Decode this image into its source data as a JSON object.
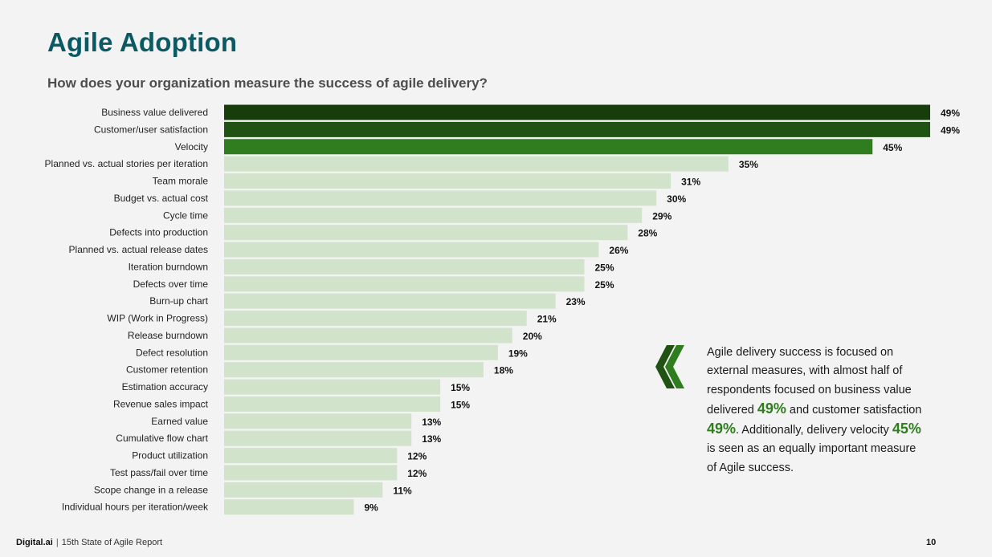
{
  "page": {
    "title": "Agile Adoption",
    "subtitle": "How does your organization measure the success of agile delivery?"
  },
  "chart_data": {
    "type": "bar",
    "orientation": "horizontal",
    "categories": [
      "Business value delivered",
      "Customer/user satisfaction",
      "Velocity",
      "Planned vs. actual stories per iteration",
      "Team morale",
      "Budget vs. actual cost",
      "Cycle time",
      "Defects into production",
      "Planned vs. actual release dates",
      "Iteration burndown",
      "Defects over time",
      "Burn-up chart",
      "WIP (Work in Progress)",
      "Release burndown",
      "Defect resolution",
      "Customer retention",
      "Estimation accuracy",
      "Revenue sales impact",
      "Earned value",
      "Cumulative flow chart",
      "Product utilization",
      "Test pass/fail over time",
      "Scope change in a release",
      "Individual hours per iteration/week"
    ],
    "values": [
      49,
      49,
      45,
      35,
      31,
      30,
      29,
      28,
      26,
      25,
      25,
      23,
      21,
      20,
      19,
      18,
      15,
      15,
      13,
      13,
      12,
      12,
      11,
      9
    ],
    "value_labels": [
      "49%",
      "49%",
      "45%",
      "35%",
      "31%",
      "30%",
      "29%",
      "28%",
      "26%",
      "25%",
      "25%",
      "23%",
      "21%",
      "20%",
      "19%",
      "18%",
      "15%",
      "15%",
      "13%",
      "13%",
      "12%",
      "12%",
      "11%",
      "9%"
    ],
    "xlim": [
      0,
      49
    ],
    "unit": "%",
    "colors": [
      "#173d0c",
      "#1f5213",
      "#2f7d1e",
      "#d2e3cc"
    ]
  },
  "callout": {
    "parts": [
      "Agile delivery success is focused on external measures, with almost half of respondents focused on business value delivered ",
      "49%",
      " and customer satisfaction ",
      "49%",
      ". Additionally, delivery velocity ",
      "45%",
      " is seen as an equally important measure of Agile success."
    ],
    "accent_color": "#2f7d1e",
    "icon": "double-chevron-left-icon"
  },
  "footer": {
    "brand": "Digital.ai",
    "separator": "|",
    "report": "15th State of Agile Report",
    "page_number": "10"
  }
}
